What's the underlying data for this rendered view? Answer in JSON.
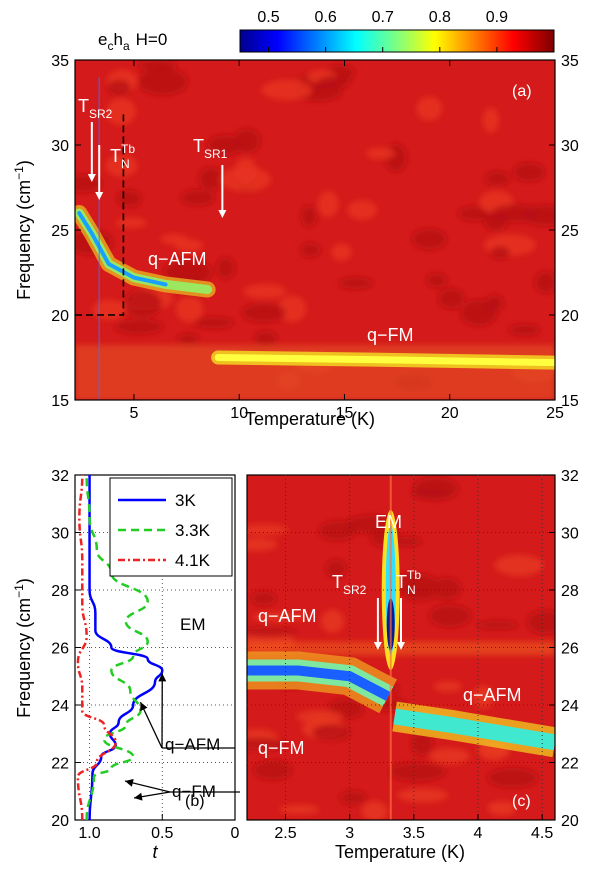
{
  "colorbar": {
    "label": "e c h a  H=0",
    "ticks": [
      "0.5",
      "0.6",
      "0.7",
      "0.8",
      "0.9"
    ],
    "range": [
      0.45,
      1.0
    ],
    "colormap": "jet"
  },
  "chart_data": [
    {
      "type": "heatmap",
      "panel": "(a)",
      "xlabel": "Temperature (K)",
      "ylabel": "Frequency (cm⁻¹)",
      "xlim": [
        2.2,
        25
      ],
      "ylim": [
        15,
        35
      ],
      "xticks": [
        5,
        10,
        15,
        20,
        25
      ],
      "yticks": [
        15,
        20,
        25,
        30,
        35
      ],
      "annotations": [
        {
          "text": "T",
          "sub": "SR2",
          "x": 3.0
        },
        {
          "text": "T",
          "sub": "N",
          "sup": "Tb",
          "x": 3.35
        },
        {
          "text": "T",
          "sub": "SR1",
          "x": 9.2
        },
        {
          "text": "q−AFM"
        },
        {
          "text": "q−FM"
        }
      ],
      "modes": [
        {
          "name": "q-AFM",
          "points": [
            [
              2.4,
              26.0
            ],
            [
              3.0,
              24.8
            ],
            [
              3.8,
              23.0
            ],
            [
              5,
              22.2
            ],
            [
              6.5,
              21.8
            ],
            [
              8.5,
              21.5
            ]
          ]
        },
        {
          "name": "q-FM",
          "points": [
            [
              9,
              17.5
            ],
            [
              15,
              17.4
            ],
            [
              25,
              17.2
            ]
          ]
        }
      ],
      "inset_box": {
        "x": [
          2.2,
          4.5
        ],
        "y": [
          20,
          35
        ]
      }
    },
    {
      "type": "line",
      "panel": "(b)",
      "xlabel": "t",
      "ylabel": "Frequency (cm⁻¹)",
      "xlim": [
        1.1,
        0
      ],
      "ylim": [
        20,
        32
      ],
      "xticks": [
        "1.0",
        "0.5",
        "0"
      ],
      "yticks": [
        20,
        22,
        24,
        26,
        28,
        30,
        32
      ],
      "legend": "top-right",
      "series": [
        {
          "name": "3K",
          "color": "#0000ff",
          "dash": "solid",
          "points": [
            [
              1,
              20
            ],
            [
              0.98,
              21.6
            ],
            [
              0.92,
              22.2
            ],
            [
              0.82,
              22.6
            ],
            [
              0.86,
              23.0
            ],
            [
              0.8,
              23.4
            ],
            [
              0.7,
              24.0
            ],
            [
              0.55,
              24.8
            ],
            [
              0.5,
              25.2
            ],
            [
              0.6,
              25.6
            ],
            [
              0.85,
              26.0
            ],
            [
              0.96,
              26.6
            ],
            [
              0.96,
              27.2
            ],
            [
              1,
              28
            ],
            [
              1,
              32
            ]
          ]
        },
        {
          "name": "3.3K",
          "color": "#22cc22",
          "dash": "8,5",
          "points": [
            [
              1.02,
              20
            ],
            [
              0.97,
              21.5
            ],
            [
              0.85,
              21.8
            ],
            [
              0.7,
              22.2
            ],
            [
              0.9,
              22.8
            ],
            [
              0.75,
              23.3
            ],
            [
              0.65,
              23.8
            ],
            [
              0.72,
              24.5
            ],
            [
              0.85,
              25.2
            ],
            [
              0.7,
              25.7
            ],
            [
              0.6,
              26.2
            ],
            [
              0.75,
              26.9
            ],
            [
              0.6,
              27.6
            ],
            [
              0.85,
              28.6
            ],
            [
              0.95,
              29.4
            ],
            [
              1,
              30.5
            ],
            [
              1.02,
              32
            ]
          ]
        },
        {
          "name": "4.1K",
          "color": "#ee2222",
          "dash": "7,3,2,3",
          "points": [
            [
              1.05,
              20
            ],
            [
              1.08,
              21.5
            ],
            [
              0.95,
              22.0
            ],
            [
              0.82,
              22.7
            ],
            [
              0.9,
              23.3
            ],
            [
              1.05,
              23.8
            ],
            [
              1.05,
              24.6
            ],
            [
              1.08,
              25.5
            ],
            [
              1.02,
              26.4
            ],
            [
              1.05,
              27.5
            ],
            [
              1.05,
              29
            ],
            [
              1.07,
              30.5
            ],
            [
              1.05,
              32
            ]
          ]
        }
      ],
      "annotations": [
        "EM",
        "q−AFM",
        "q−FM"
      ]
    },
    {
      "type": "heatmap",
      "panel": "(c)",
      "xlabel": "Temperature (K)",
      "xlim": [
        2.2,
        4.6
      ],
      "ylim": [
        20,
        32
      ],
      "xticks": [
        "2.5",
        "3",
        "3.5",
        "4",
        "4.5"
      ],
      "yticks": [
        20,
        22,
        24,
        26,
        28,
        30,
        32
      ],
      "annotations": [
        {
          "text": "EM"
        },
        {
          "text": "T",
          "sub": "SR2",
          "x": 3.22
        },
        {
          "text": "T",
          "sub": "N",
          "sup": "Tb",
          "x": 3.4
        },
        {
          "text": "q−AFM"
        },
        {
          "text": "q−AFM"
        },
        {
          "text": "q−FM"
        }
      ],
      "modes": [
        {
          "name": "q-AFM-low",
          "points": [
            [
              2.2,
              25.2
            ],
            [
              2.6,
              25.2
            ],
            [
              3.0,
              25.0
            ],
            [
              3.3,
              24.3
            ]
          ]
        },
        {
          "name": "q-AFM-high",
          "points": [
            [
              3.35,
              23.6
            ],
            [
              3.8,
              23.3
            ],
            [
              4.2,
              23.0
            ],
            [
              4.6,
              22.7
            ]
          ]
        },
        {
          "name": "EM",
          "points": [
            [
              3.32,
              26.0
            ],
            [
              3.32,
              30.0
            ]
          ]
        }
      ]
    }
  ]
}
